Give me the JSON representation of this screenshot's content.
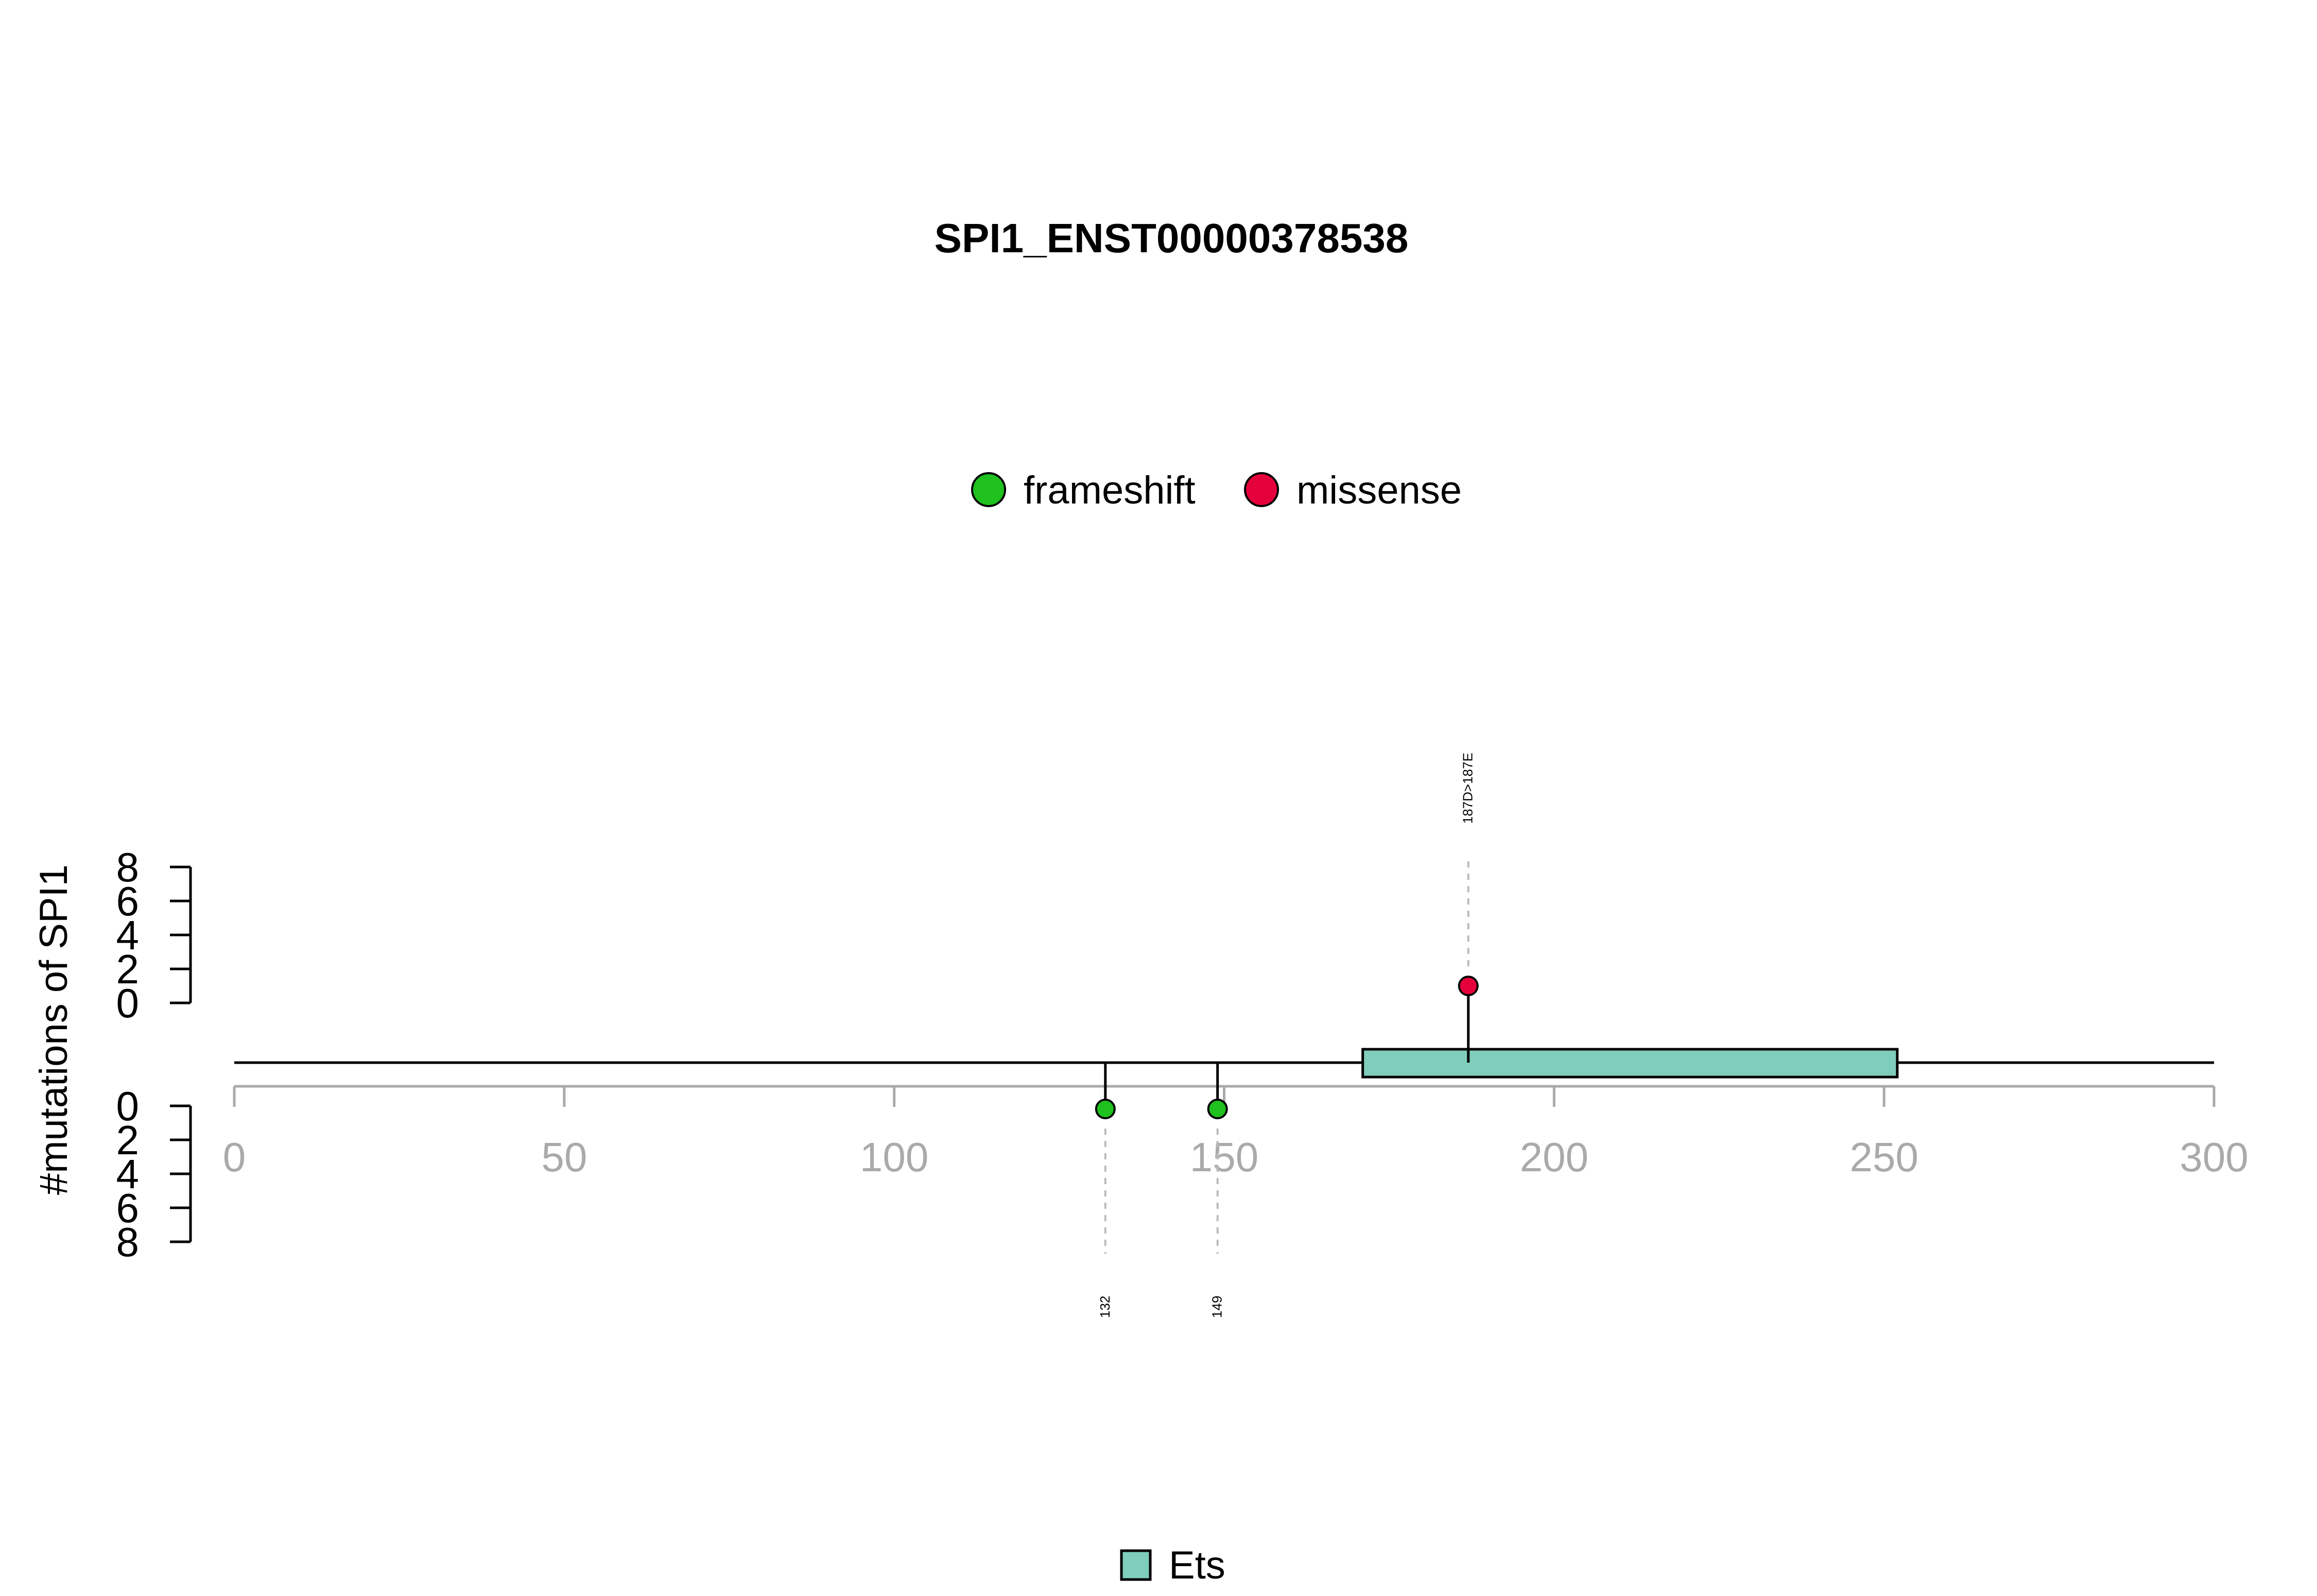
{
  "chart_data": {
    "type": "lollipop",
    "title": "SPI1_ENST00000378538",
    "ylabel": "#mutations of SPI1",
    "xlim": [
      0,
      300
    ],
    "x_ticks": [
      0,
      50,
      100,
      150,
      200,
      250,
      300
    ],
    "y_ticks": [
      0,
      2,
      4,
      6,
      8
    ],
    "ylim": [
      0,
      8
    ],
    "protein_length": 300,
    "legend_mutation_types": [
      {
        "label": "frameshift",
        "color": "#1EC11E"
      },
      {
        "label": "missense",
        "color": "#E4003B"
      }
    ],
    "mutations": [
      {
        "position": 132,
        "count": 1,
        "type": "frameshift",
        "label": "132",
        "side": "bottom"
      },
      {
        "position": 149,
        "count": 1,
        "type": "frameshift",
        "label": "149",
        "side": "bottom"
      },
      {
        "position": 187,
        "count": 1,
        "type": "missense",
        "label": "187D>187E",
        "side": "top"
      }
    ],
    "domains": [
      {
        "name": "Ets",
        "start": 171,
        "end": 252,
        "color": "#7FCDBB"
      }
    ],
    "legend_domains": [
      {
        "label": "Ets",
        "color": "#7FCDBB"
      }
    ],
    "colors": {
      "axis": "#AAAAAA",
      "backbone": "#000000",
      "connector": "#BBBBBB"
    }
  }
}
